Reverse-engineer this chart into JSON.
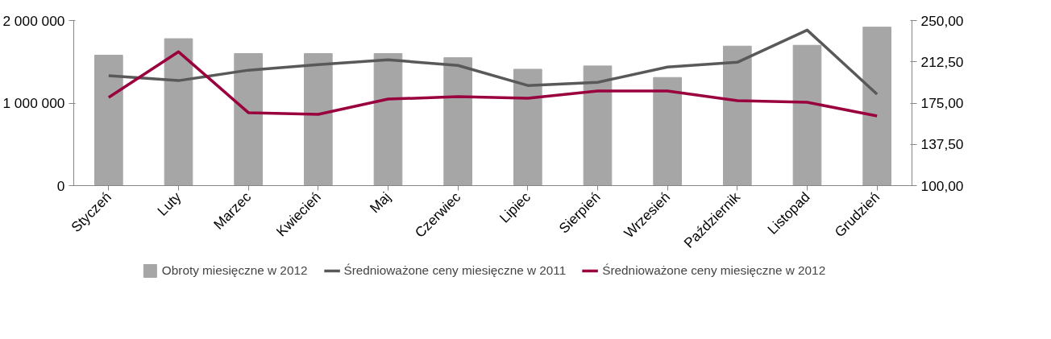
{
  "chart_data": {
    "type": "bar",
    "categories": [
      "Styczeń",
      "Luty",
      "Marzec",
      "Kwiecień",
      "Maj",
      "Czerwiec",
      "Lipiec",
      "Sierpień",
      "Wrzesień",
      "Październik",
      "Listopad",
      "Grudzień"
    ],
    "series": [
      {
        "name": "Obroty miesięczne w 2012",
        "color": "#a6a6a6",
        "values": [
          1580000,
          1780000,
          1600000,
          1600000,
          1600000,
          1550000,
          1410000,
          1450000,
          1310000,
          1690000,
          1700000,
          1920000
        ]
      },
      {
        "name": "Średnioważone ceny miesięczne w 2011",
        "type": "line",
        "axis": "y2",
        "color": "#595959",
        "values": [
          199.8,
          195.4,
          204.9,
          210.0,
          214.3,
          209.2,
          191.0,
          193.9,
          207.8,
          212.1,
          241.3,
          183.0
        ]
      },
      {
        "name": "Średnioważone ceny miesięczne w 2012",
        "type": "line",
        "axis": "y2",
        "color": "#99003d",
        "values": [
          180.1,
          221.6,
          166.3,
          164.8,
          178.6,
          180.8,
          179.4,
          185.9,
          185.9,
          177.2,
          175.7,
          163.3
        ]
      }
    ],
    "ylim": [
      0,
      2000000
    ],
    "yticks": [
      {
        "value": 0,
        "label": "0"
      },
      {
        "value": 1000000,
        "label": "1 000 000"
      },
      {
        "value": 2000000,
        "label": "2 000 000"
      }
    ],
    "y2lim": [
      100,
      250
    ],
    "y2ticks": [
      {
        "value": 100,
        "label": "100,00"
      },
      {
        "value": 137.5,
        "label": "137,50"
      },
      {
        "value": 175,
        "label": "175,00"
      },
      {
        "value": 212.5,
        "label": "212,50"
      },
      {
        "value": 250,
        "label": "250,00"
      }
    ],
    "grid": false,
    "legend": "bottom",
    "marker": "none",
    "line_style": "solid"
  }
}
